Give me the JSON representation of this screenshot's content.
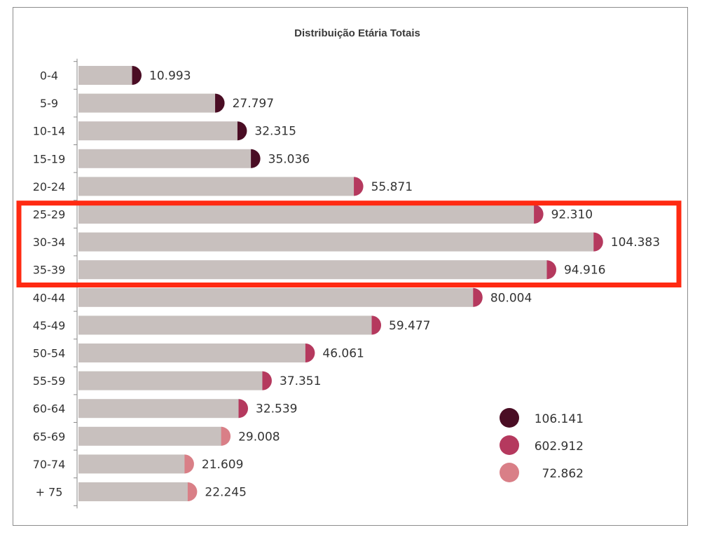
{
  "chart_data": {
    "type": "bar",
    "orientation": "horizontal",
    "title": "Distribuição Etária Totais",
    "categories": [
      "0-4",
      "5-9",
      "10-14",
      "15-19",
      "20-24",
      "25-29",
      "30-34",
      "35-39",
      "40-44",
      "45-49",
      "50-54",
      "55-59",
      "60-64",
      "65-69",
      "70-74",
      "+ 75"
    ],
    "values": [
      10993,
      27797,
      32315,
      35036,
      55871,
      92310,
      104383,
      94916,
      80004,
      59477,
      46061,
      37351,
      32539,
      29008,
      21609,
      22245
    ],
    "value_labels": [
      "10.993",
      "27.797",
      "32.315",
      "35.036",
      "55.871",
      "92.310",
      "104.383",
      "94.916",
      "80.004",
      "59.477",
      "46.061",
      "37.351",
      "32.539",
      "29.008",
      "21.609",
      "22.245"
    ],
    "groups": [
      0,
      0,
      0,
      0,
      1,
      1,
      1,
      1,
      1,
      1,
      1,
      1,
      1,
      2,
      2,
      2
    ],
    "group_colors": [
      "#4a0d24",
      "#b5395e",
      "#d97f87"
    ],
    "bar_color": "#c8c0be",
    "xlim": [
      0,
      112000
    ],
    "legend": {
      "position": "bottom-right",
      "entries": [
        {
          "label": "106.141",
          "color": "#4a0d24"
        },
        {
          "label": "602.912",
          "color": "#b5395e"
        },
        {
          "label": "72.862",
          "color": "#d97f87"
        }
      ]
    },
    "highlight": {
      "categories": [
        "25-29",
        "30-34",
        "35-39"
      ],
      "color": "#ff2a12"
    }
  }
}
